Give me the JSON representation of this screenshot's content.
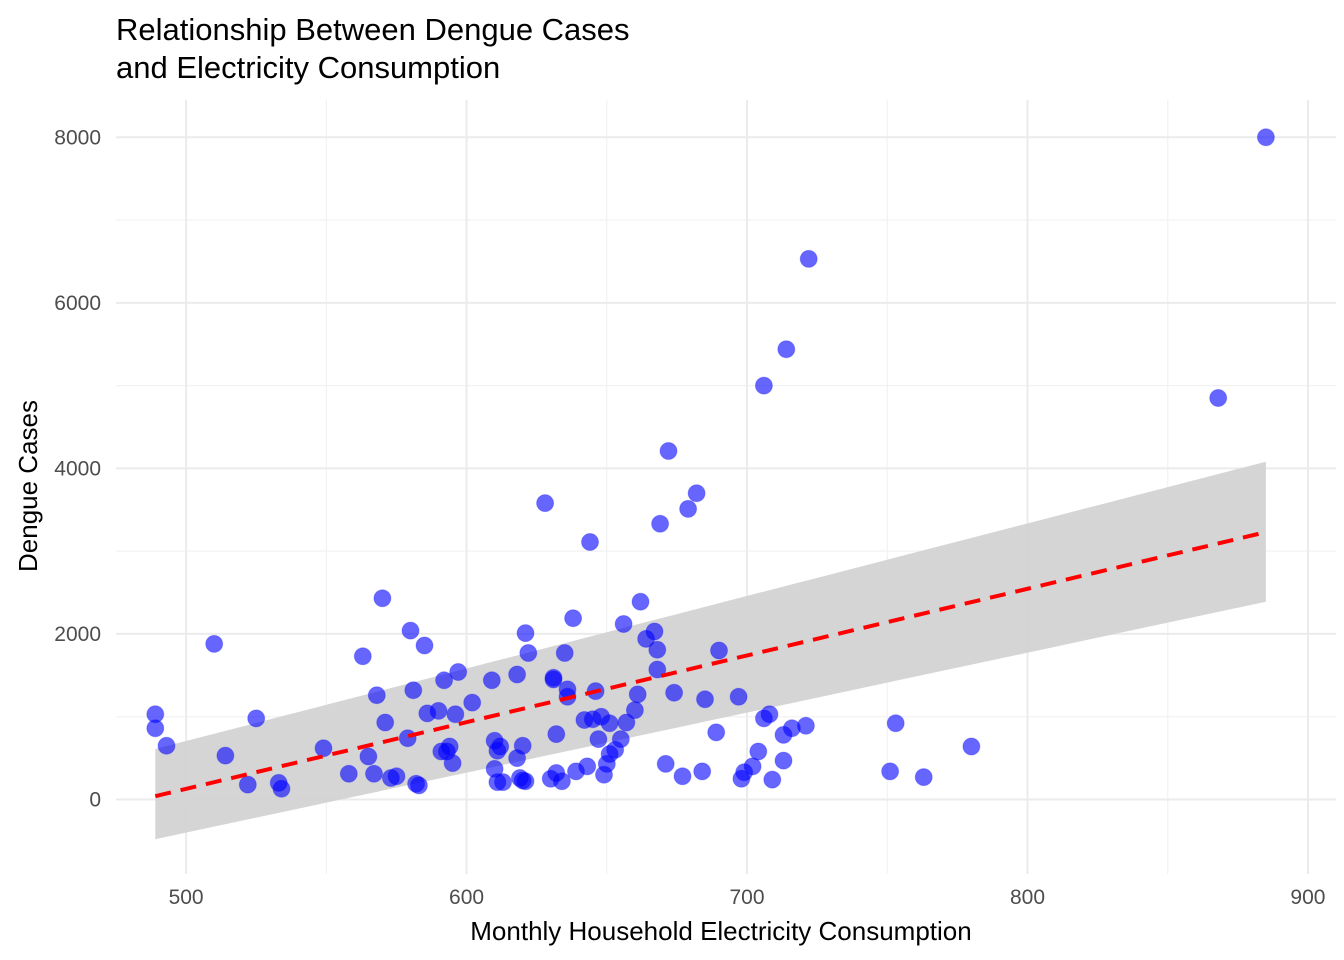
{
  "chart_data": {
    "type": "scatter",
    "title": [
      "Relationship Between Dengue Cases",
      "and Electricity Consumption"
    ],
    "xlabel": "Monthly Household Electricity Consumption",
    "ylabel": "Dengue Cases",
    "xlim": [
      475,
      910
    ],
    "ylim": [
      -900,
      8450
    ],
    "x_ticks": [
      500,
      600,
      700,
      800,
      900
    ],
    "y_ticks": [
      0,
      2000,
      4000,
      6000,
      8000
    ],
    "x_tick_labels": [
      "500",
      "600",
      "700",
      "800",
      "900"
    ],
    "y_tick_labels": [
      "0",
      "2000",
      "4000",
      "6000",
      "8000"
    ],
    "grid": true,
    "legend": "none",
    "point_color": "#0000ff",
    "point_opacity": 0.6,
    "fit_line_color": "#ff0000",
    "band_color": "#d3d3d3",
    "points": [
      [
        489,
        860
      ],
      [
        489,
        1030
      ],
      [
        493,
        650
      ],
      [
        510,
        1880
      ],
      [
        514,
        530
      ],
      [
        522,
        180
      ],
      [
        525,
        980
      ],
      [
        533,
        200
      ],
      [
        534,
        130
      ],
      [
        549,
        620
      ],
      [
        558,
        310
      ],
      [
        563,
        1730
      ],
      [
        565,
        520
      ],
      [
        567,
        310
      ],
      [
        568,
        1260
      ],
      [
        570,
        2430
      ],
      [
        571,
        930
      ],
      [
        573,
        260
      ],
      [
        575,
        280
      ],
      [
        579,
        740
      ],
      [
        580,
        2040
      ],
      [
        581,
        1320
      ],
      [
        582,
        190
      ],
      [
        583,
        170
      ],
      [
        585,
        1860
      ],
      [
        586,
        1040
      ],
      [
        590,
        1070
      ],
      [
        591,
        580
      ],
      [
        592,
        1440
      ],
      [
        593,
        580
      ],
      [
        594,
        640
      ],
      [
        595,
        440
      ],
      [
        596,
        1030
      ],
      [
        597,
        1540
      ],
      [
        602,
        1170
      ],
      [
        609,
        1440
      ],
      [
        610,
        370
      ],
      [
        610,
        710
      ],
      [
        611,
        210
      ],
      [
        611,
        590
      ],
      [
        612,
        640
      ],
      [
        613,
        210
      ],
      [
        618,
        1510
      ],
      [
        618,
        500
      ],
      [
        619,
        260
      ],
      [
        620,
        230
      ],
      [
        620,
        650
      ],
      [
        621,
        2010
      ],
      [
        621,
        220
      ],
      [
        622,
        1770
      ],
      [
        628,
        3580
      ],
      [
        630,
        250
      ],
      [
        631,
        1470
      ],
      [
        631,
        1450
      ],
      [
        632,
        320
      ],
      [
        632,
        790
      ],
      [
        634,
        220
      ],
      [
        635,
        1770
      ],
      [
        636,
        1330
      ],
      [
        636,
        1240
      ],
      [
        638,
        2190
      ],
      [
        639,
        340
      ],
      [
        642,
        960
      ],
      [
        643,
        400
      ],
      [
        644,
        3110
      ],
      [
        645,
        970
      ],
      [
        646,
        1310
      ],
      [
        647,
        730
      ],
      [
        648,
        1000
      ],
      [
        649,
        300
      ],
      [
        650,
        430
      ],
      [
        651,
        920
      ],
      [
        651,
        550
      ],
      [
        653,
        600
      ],
      [
        655,
        730
      ],
      [
        656,
        2120
      ],
      [
        657,
        930
      ],
      [
        660,
        1080
      ],
      [
        661,
        1270
      ],
      [
        662,
        2390
      ],
      [
        664,
        1940
      ],
      [
        667,
        2030
      ],
      [
        668,
        1810
      ],
      [
        668,
        1570
      ],
      [
        669,
        3330
      ],
      [
        671,
        430
      ],
      [
        672,
        4210
      ],
      [
        674,
        1290
      ],
      [
        677,
        280
      ],
      [
        679,
        3510
      ],
      [
        682,
        3700
      ],
      [
        684,
        340
      ],
      [
        685,
        1210
      ],
      [
        689,
        810
      ],
      [
        690,
        1800
      ],
      [
        697,
        1240
      ],
      [
        698,
        250
      ],
      [
        699,
        330
      ],
      [
        702,
        400
      ],
      [
        704,
        580
      ],
      [
        706,
        5000
      ],
      [
        706,
        980
      ],
      [
        708,
        1030
      ],
      [
        709,
        240
      ],
      [
        713,
        470
      ],
      [
        713,
        780
      ],
      [
        714,
        5440
      ],
      [
        716,
        860
      ],
      [
        721,
        890
      ],
      [
        722,
        6530
      ],
      [
        751,
        340
      ],
      [
        753,
        920
      ],
      [
        763,
        270
      ],
      [
        780,
        640
      ],
      [
        868,
        4850
      ],
      [
        885,
        8000
      ]
    ],
    "fit_line": {
      "x": [
        489,
        885
      ],
      "y": [
        40,
        3230
      ]
    },
    "confidence_band": {
      "x": [
        489,
        885
      ],
      "lower": [
        -480,
        2390
      ],
      "upper": [
        610,
        4080
      ]
    }
  }
}
